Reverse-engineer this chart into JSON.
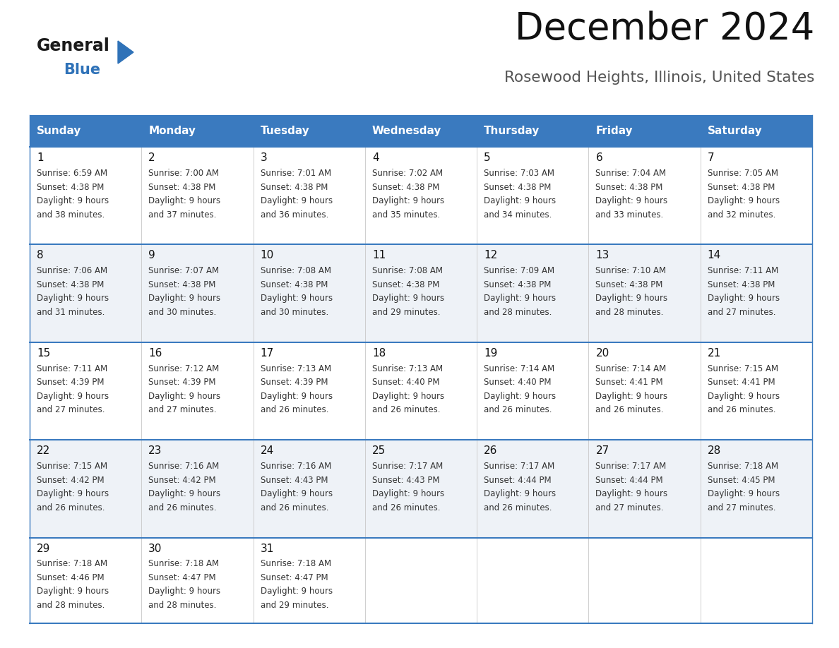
{
  "title": "December 2024",
  "subtitle": "Rosewood Heights, Illinois, United States",
  "header_bg_color": "#3a7abf",
  "header_text_color": "#ffffff",
  "cell_bg_light": "#eef2f7",
  "cell_bg_white": "#ffffff",
  "day_names": [
    "Sunday",
    "Monday",
    "Tuesday",
    "Wednesday",
    "Thursday",
    "Friday",
    "Saturday"
  ],
  "weeks": [
    [
      {
        "day": 1,
        "sunrise": "6:59 AM",
        "sunset": "4:38 PM",
        "daylight_min": 38
      },
      {
        "day": 2,
        "sunrise": "7:00 AM",
        "sunset": "4:38 PM",
        "daylight_min": 37
      },
      {
        "day": 3,
        "sunrise": "7:01 AM",
        "sunset": "4:38 PM",
        "daylight_min": 36
      },
      {
        "day": 4,
        "sunrise": "7:02 AM",
        "sunset": "4:38 PM",
        "daylight_min": 35
      },
      {
        "day": 5,
        "sunrise": "7:03 AM",
        "sunset": "4:38 PM",
        "daylight_min": 34
      },
      {
        "day": 6,
        "sunrise": "7:04 AM",
        "sunset": "4:38 PM",
        "daylight_min": 33
      },
      {
        "day": 7,
        "sunrise": "7:05 AM",
        "sunset": "4:38 PM",
        "daylight_min": 32
      }
    ],
    [
      {
        "day": 8,
        "sunrise": "7:06 AM",
        "sunset": "4:38 PM",
        "daylight_min": 31
      },
      {
        "day": 9,
        "sunrise": "7:07 AM",
        "sunset": "4:38 PM",
        "daylight_min": 30
      },
      {
        "day": 10,
        "sunrise": "7:08 AM",
        "sunset": "4:38 PM",
        "daylight_min": 30
      },
      {
        "day": 11,
        "sunrise": "7:08 AM",
        "sunset": "4:38 PM",
        "daylight_min": 29
      },
      {
        "day": 12,
        "sunrise": "7:09 AM",
        "sunset": "4:38 PM",
        "daylight_min": 28
      },
      {
        "day": 13,
        "sunrise": "7:10 AM",
        "sunset": "4:38 PM",
        "daylight_min": 28
      },
      {
        "day": 14,
        "sunrise": "7:11 AM",
        "sunset": "4:38 PM",
        "daylight_min": 27
      }
    ],
    [
      {
        "day": 15,
        "sunrise": "7:11 AM",
        "sunset": "4:39 PM",
        "daylight_min": 27
      },
      {
        "day": 16,
        "sunrise": "7:12 AM",
        "sunset": "4:39 PM",
        "daylight_min": 27
      },
      {
        "day": 17,
        "sunrise": "7:13 AM",
        "sunset": "4:39 PM",
        "daylight_min": 26
      },
      {
        "day": 18,
        "sunrise": "7:13 AM",
        "sunset": "4:40 PM",
        "daylight_min": 26
      },
      {
        "day": 19,
        "sunrise": "7:14 AM",
        "sunset": "4:40 PM",
        "daylight_min": 26
      },
      {
        "day": 20,
        "sunrise": "7:14 AM",
        "sunset": "4:41 PM",
        "daylight_min": 26
      },
      {
        "day": 21,
        "sunrise": "7:15 AM",
        "sunset": "4:41 PM",
        "daylight_min": 26
      }
    ],
    [
      {
        "day": 22,
        "sunrise": "7:15 AM",
        "sunset": "4:42 PM",
        "daylight_min": 26
      },
      {
        "day": 23,
        "sunrise": "7:16 AM",
        "sunset": "4:42 PM",
        "daylight_min": 26
      },
      {
        "day": 24,
        "sunrise": "7:16 AM",
        "sunset": "4:43 PM",
        "daylight_min": 26
      },
      {
        "day": 25,
        "sunrise": "7:17 AM",
        "sunset": "4:43 PM",
        "daylight_min": 26
      },
      {
        "day": 26,
        "sunrise": "7:17 AM",
        "sunset": "4:44 PM",
        "daylight_min": 26
      },
      {
        "day": 27,
        "sunrise": "7:17 AM",
        "sunset": "4:44 PM",
        "daylight_min": 27
      },
      {
        "day": 28,
        "sunrise": "7:18 AM",
        "sunset": "4:45 PM",
        "daylight_min": 27
      }
    ],
    [
      {
        "day": 29,
        "sunrise": "7:18 AM",
        "sunset": "4:46 PM",
        "daylight_min": 28
      },
      {
        "day": 30,
        "sunrise": "7:18 AM",
        "sunset": "4:47 PM",
        "daylight_min": 28
      },
      {
        "day": 31,
        "sunrise": "7:18 AM",
        "sunset": "4:47 PM",
        "daylight_min": 29
      },
      null,
      null,
      null,
      null
    ]
  ],
  "logo_color_text": "#1a1a1a",
  "logo_color_blue": "#2f72b8",
  "title_color": "#111111",
  "subtitle_color": "#555555",
  "day_number_color": "#111111",
  "cell_text_color": "#333333",
  "divider_color": "#3a7abf",
  "border_color": "#3a7abf"
}
